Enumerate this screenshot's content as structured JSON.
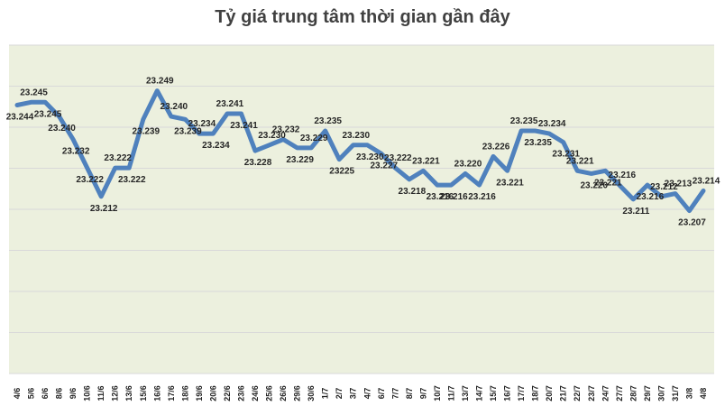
{
  "colors": {
    "plot_background": "#ECF0DE",
    "line": "#4F81BD",
    "gridline": "#D9D9D9"
  },
  "chart_data": {
    "type": "line",
    "title": "Tỷ giá trung tâm thời gian gần đây",
    "xlabel": "",
    "ylabel": "",
    "ylim": [
      23.15,
      23.265
    ],
    "grid": true,
    "legend": "none",
    "x": [
      "4/6",
      "5/6",
      "6/6",
      "8/6",
      "9/6",
      "10/6",
      "11/6",
      "12/6",
      "13/6",
      "15/6",
      "16/6",
      "17/6",
      "18/6",
      "19/6",
      "20/6",
      "22/6",
      "23/6",
      "24/6",
      "25/6",
      "26/6",
      "29/6",
      "30/6",
      "1/7",
      "2/7",
      "3/7",
      "4/7",
      "6/7",
      "7/7",
      "8/7",
      "9/7",
      "10/7",
      "11/7",
      "13/7",
      "14/7",
      "15/7",
      "16/7",
      "17/7",
      "18/7",
      "20/7",
      "21/7",
      "22/7",
      "23/7",
      "24/7",
      "27/7",
      "28/7",
      "29/7",
      "30/7",
      "31/7",
      "3/8",
      "4/8"
    ],
    "series": [
      {
        "values": [
          23.244,
          23.245,
          23.245,
          23.24,
          23.232,
          23.222,
          23.212,
          23.222,
          23.222,
          23.239,
          23.249,
          23.24,
          23.239,
          23.234,
          23.234,
          23.241,
          23.241,
          23.228,
          23.23,
          23.232,
          23.229,
          23.229,
          23.235,
          23.225,
          23.23,
          23.23,
          23.227,
          23.222,
          23.218,
          23.221,
          23.216,
          23.216,
          23.22,
          23.216,
          23.226,
          23.221,
          23.235,
          23.235,
          23.234,
          23.231,
          23.221,
          23.22,
          23.221,
          23.216,
          23.211,
          23.216,
          23.212,
          23.213,
          23.207,
          23.214
        ],
        "labels": [
          "23.244",
          "23.245",
          "23.245",
          "23.240",
          "23.232",
          "23.222",
          "23.212",
          "23.222",
          "23.222",
          "23.239",
          "23.249",
          "23.240",
          "23.239",
          "23.234",
          "23.234",
          "23.241",
          "23.241",
          "23.228",
          "23.230",
          "23.232",
          "23.229",
          "23.229",
          "23.235",
          "23225",
          "23.230",
          "23.230",
          "23.227",
          "23.222",
          "23.218",
          "23.221",
          "23.216",
          "23.216",
          "23.220",
          "23.216",
          "23.226",
          "23.221",
          "23.235",
          "23.235",
          "23.234",
          "23.231",
          "23.221",
          "23.220",
          "23.221",
          "23.216",
          "23.211",
          "23.216",
          "23.212",
          "23.213",
          "23.207",
          "23.214"
        ],
        "label_offsets": [
          "below",
          "above",
          "below",
          "below",
          "below",
          "below",
          "below",
          "above",
          "below",
          "below",
          "above",
          "above",
          "below",
          "above",
          "below",
          "above",
          "below",
          "below",
          "above",
          "above",
          "below",
          "above",
          "above",
          "below",
          "above",
          "below",
          "below",
          "above",
          "below",
          "above",
          "below",
          "below",
          "above",
          "below",
          "above",
          "below",
          "above",
          "below",
          "above",
          "below",
          "above",
          "below",
          "below",
          "above",
          "below",
          "below",
          "above",
          "above",
          "below",
          "above"
        ]
      }
    ]
  }
}
